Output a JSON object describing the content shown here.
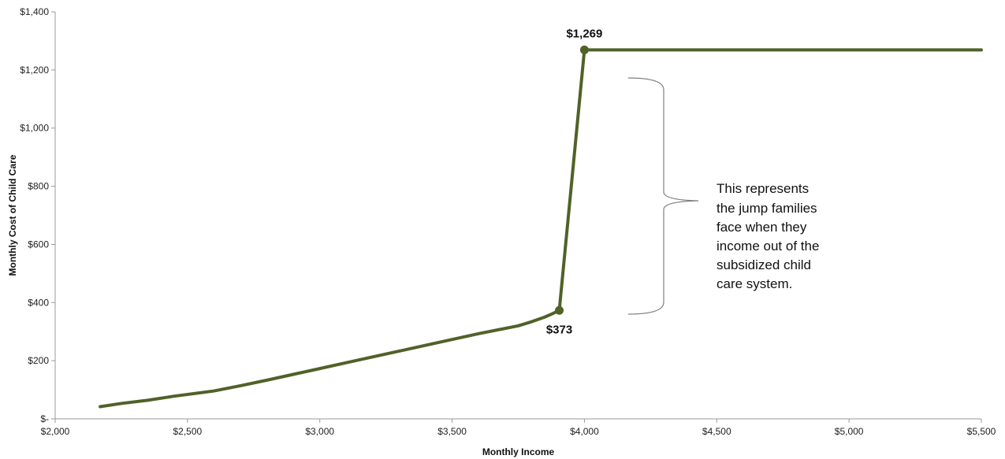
{
  "chart_data": {
    "type": "line",
    "title": "",
    "xlabel": "Monthly Income",
    "ylabel": "Monthly Cost of Child Care",
    "xlim": [
      2000,
      5500
    ],
    "ylim": [
      0,
      1400
    ],
    "x_ticks": [
      2000,
      2500,
      3000,
      3500,
      4000,
      4500,
      5000,
      5500
    ],
    "x_tick_labels": [
      "$2,000",
      "$2,500",
      "$3,000",
      "$3,500",
      "$4,000",
      "$4,500",
      "$5,000",
      "$5,500"
    ],
    "y_ticks": [
      0,
      200,
      400,
      600,
      800,
      1000,
      1200,
      1400
    ],
    "y_tick_labels": [
      "$-",
      "$200",
      "$400",
      "$600",
      "$800",
      "$1,000",
      "$1,200",
      "$1,400"
    ],
    "grid": false,
    "legend": "none",
    "series": [
      {
        "color": "#4f6228",
        "x": [
          2170,
          2250,
          2350,
          2450,
          2600,
          2700,
          2800,
          2900,
          3000,
          3100,
          3200,
          3300,
          3400,
          3500,
          3600,
          3750,
          3800,
          3850,
          3880,
          3905,
          4000,
          5500
        ],
        "y": [
          42,
          53,
          64,
          78,
          96,
          114,
          133,
          153,
          173,
          193,
          213,
          233,
          253,
          273,
          293,
          320,
          334,
          350,
          362,
          373,
          1269,
          1269
        ]
      }
    ],
    "markers": [
      {
        "x": 3905,
        "y": 373,
        "label": "$373"
      },
      {
        "x": 4000,
        "y": 1269,
        "label": "$1,269"
      }
    ],
    "annotation": {
      "lines": [
        "This represents",
        "the jump families",
        "face when they",
        "income out of the",
        "subsidized child",
        "care system."
      ]
    }
  }
}
